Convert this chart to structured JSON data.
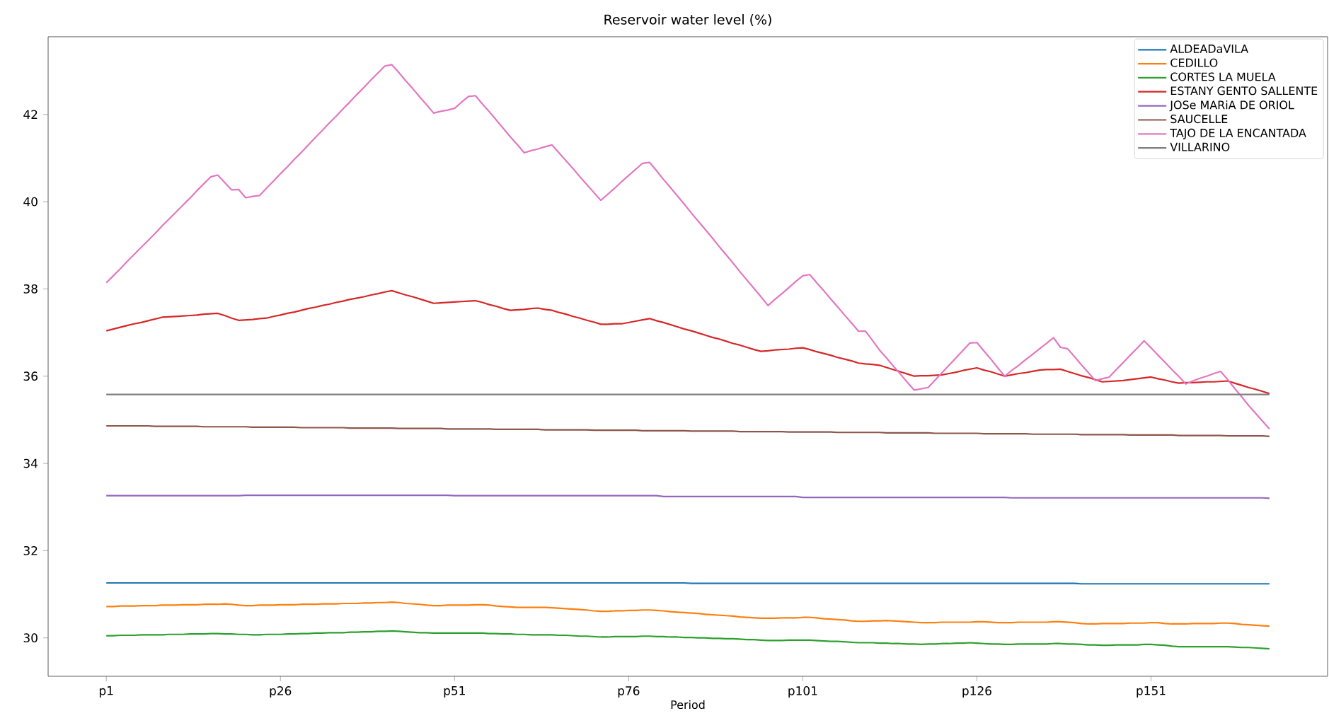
{
  "chart_data": {
    "type": "line",
    "title": "Reservoir water level (%)",
    "xlabel": "Period",
    "categories": [
      "p1",
      null,
      null,
      null,
      null,
      null,
      null,
      null,
      null,
      null,
      null,
      null,
      null,
      null,
      null,
      null,
      null,
      null,
      null,
      null,
      null,
      null,
      null,
      null,
      null,
      "p26",
      null,
      null,
      null,
      null,
      null,
      null,
      null,
      null,
      null,
      null,
      null,
      null,
      null,
      null,
      null,
      null,
      null,
      null,
      null,
      null,
      null,
      null,
      null,
      null,
      "p51",
      null,
      null,
      null,
      null,
      null,
      null,
      null,
      null,
      null,
      null,
      null,
      null,
      null,
      null,
      null,
      null,
      null,
      null,
      null,
      null,
      null,
      null,
      null,
      null,
      "p76",
      null,
      null,
      null,
      null,
      null,
      null,
      null,
      null,
      null,
      null,
      null,
      null,
      null,
      null,
      null,
      null,
      null,
      null,
      null,
      null,
      null,
      null,
      null,
      null,
      "p101",
      null,
      null,
      null,
      null,
      null,
      null,
      null,
      null,
      null,
      null,
      null,
      null,
      null,
      null,
      null,
      null,
      null,
      null,
      null,
      null,
      null,
      null,
      null,
      null,
      "p126",
      null,
      null,
      null,
      null,
      null,
      null,
      null,
      null,
      null,
      null,
      null,
      null,
      null,
      null,
      null,
      null,
      null,
      null,
      null,
      null,
      null,
      null,
      null,
      null,
      "p151",
      null,
      null,
      null,
      null,
      null,
      null,
      null,
      null,
      null,
      null,
      null,
      null,
      null,
      null,
      null,
      null,
      null
    ],
    "ylim": [
      29.12,
      43.78
    ],
    "yticks": [
      30,
      32,
      34,
      36,
      38,
      40,
      42
    ],
    "grid": false,
    "legend": "top right",
    "marker": "none",
    "line_style": "solid",
    "series": [
      {
        "name": "ALDEADaVILA",
        "color": "#1f77b4",
        "values": [
          31.26,
          31.26,
          31.26,
          31.26,
          31.26,
          31.26,
          31.26,
          31.26,
          31.26,
          31.26,
          31.26,
          31.26,
          31.26,
          31.26,
          31.26,
          31.26,
          31.26,
          31.26,
          31.26,
          31.26,
          31.26,
          31.26,
          31.26,
          31.26,
          31.26,
          31.26,
          31.26,
          31.26,
          31.26,
          31.26,
          31.26,
          31.26,
          31.26,
          31.26,
          31.26,
          31.26,
          31.26,
          31.26,
          31.26,
          31.26,
          31.26,
          31.26,
          31.26,
          31.26,
          31.26,
          31.26,
          31.26,
          31.26,
          31.26,
          31.26,
          31.26,
          31.26,
          31.26,
          31.26,
          31.26,
          31.26,
          31.26,
          31.26,
          31.26,
          31.26,
          31.26,
          31.26,
          31.26,
          31.26,
          31.26,
          31.26,
          31.26,
          31.26,
          31.26,
          31.26,
          31.26,
          31.26,
          31.26,
          31.26,
          31.26,
          31.26,
          31.26,
          31.26,
          31.26,
          31.26,
          31.26,
          31.26,
          31.26,
          31.26,
          31.25,
          31.25,
          31.25,
          31.25,
          31.25,
          31.25,
          31.25,
          31.25,
          31.25,
          31.25,
          31.25,
          31.25,
          31.25,
          31.25,
          31.25,
          31.25,
          31.25,
          31.25,
          31.25,
          31.25,
          31.25,
          31.25,
          31.25,
          31.25,
          31.25,
          31.25,
          31.25,
          31.25,
          31.25,
          31.25,
          31.25,
          31.25,
          31.25,
          31.25,
          31.25,
          31.25,
          31.25,
          31.25,
          31.25,
          31.25,
          31.25,
          31.25,
          31.25,
          31.25,
          31.25,
          31.25,
          31.25,
          31.25,
          31.25,
          31.25,
          31.25,
          31.25,
          31.25,
          31.25,
          31.25,
          31.25,
          31.24,
          31.24,
          31.24,
          31.24,
          31.24,
          31.24,
          31.24,
          31.24,
          31.24,
          31.24,
          31.24,
          31.24,
          31.24,
          31.24,
          31.24,
          31.24,
          31.24,
          31.24,
          31.24,
          31.24,
          31.24,
          31.24,
          31.24,
          31.24,
          31.24,
          31.24,
          31.24,
          31.24
        ]
      },
      {
        "name": "CEDILLO",
        "color": "#ff7f0e",
        "values": [
          30.72,
          30.72,
          30.73,
          30.73,
          30.73,
          30.74,
          30.74,
          30.74,
          30.75,
          30.75,
          30.75,
          30.76,
          30.76,
          30.76,
          30.77,
          30.77,
          30.77,
          30.78,
          30.77,
          30.75,
          30.74,
          30.74,
          30.75,
          30.75,
          30.75,
          30.76,
          30.76,
          30.76,
          30.77,
          30.77,
          30.77,
          30.78,
          30.78,
          30.78,
          30.79,
          30.79,
          30.79,
          30.8,
          30.8,
          30.81,
          30.81,
          30.82,
          30.81,
          30.79,
          30.78,
          30.77,
          30.75,
          30.74,
          30.74,
          30.75,
          30.75,
          30.75,
          30.75,
          30.76,
          30.76,
          30.75,
          30.73,
          30.72,
          30.71,
          30.7,
          30.7,
          30.7,
          30.7,
          30.7,
          30.69,
          30.68,
          30.67,
          30.66,
          30.65,
          30.64,
          30.62,
          30.61,
          30.61,
          30.62,
          30.62,
          30.63,
          30.63,
          30.64,
          30.64,
          30.63,
          30.62,
          30.6,
          30.59,
          30.58,
          30.57,
          30.56,
          30.54,
          30.53,
          30.52,
          30.51,
          30.5,
          30.48,
          30.47,
          30.46,
          30.45,
          30.45,
          30.45,
          30.46,
          30.46,
          30.46,
          30.47,
          30.47,
          30.46,
          30.44,
          30.43,
          30.42,
          30.41,
          30.39,
          30.38,
          30.38,
          30.39,
          30.39,
          30.4,
          30.39,
          30.38,
          30.37,
          30.36,
          30.35,
          30.35,
          30.35,
          30.36,
          30.36,
          30.36,
          30.36,
          30.36,
          30.37,
          30.37,
          30.36,
          30.35,
          30.35,
          30.35,
          30.36,
          30.36,
          30.36,
          30.36,
          30.36,
          30.37,
          30.37,
          30.36,
          30.35,
          30.33,
          30.32,
          30.32,
          30.33,
          30.33,
          30.33,
          30.33,
          30.34,
          30.34,
          30.34,
          30.35,
          30.35,
          30.33,
          30.32,
          30.32,
          30.32,
          30.33,
          30.33,
          30.33,
          30.33,
          30.34,
          30.34,
          30.33,
          30.31,
          30.3,
          30.29,
          30.28,
          30.27
        ]
      },
      {
        "name": "CORTES LA MUELA",
        "color": "#2ca02c",
        "values": [
          30.05,
          30.05,
          30.06,
          30.06,
          30.06,
          30.07,
          30.07,
          30.07,
          30.07,
          30.08,
          30.08,
          30.08,
          30.09,
          30.09,
          30.09,
          30.1,
          30.1,
          30.09,
          30.09,
          30.08,
          30.08,
          30.07,
          30.07,
          30.08,
          30.08,
          30.08,
          30.09,
          30.09,
          30.1,
          30.1,
          30.11,
          30.11,
          30.12,
          30.12,
          30.12,
          30.13,
          30.13,
          30.14,
          30.14,
          30.15,
          30.15,
          30.16,
          30.15,
          30.14,
          30.13,
          30.12,
          30.12,
          30.11,
          30.11,
          30.11,
          30.11,
          30.11,
          30.11,
          30.11,
          30.11,
          30.1,
          30.1,
          30.09,
          30.09,
          30.08,
          30.08,
          30.07,
          30.07,
          30.07,
          30.07,
          30.06,
          30.06,
          30.05,
          30.04,
          30.04,
          30.03,
          30.02,
          30.02,
          30.03,
          30.03,
          30.03,
          30.03,
          30.04,
          30.04,
          30.03,
          30.03,
          30.02,
          30.02,
          30.01,
          30.01,
          30.0,
          30.0,
          29.99,
          29.99,
          29.98,
          29.98,
          29.97,
          29.96,
          29.96,
          29.95,
          29.94,
          29.94,
          29.94,
          29.95,
          29.95,
          29.95,
          29.95,
          29.94,
          29.93,
          29.92,
          29.92,
          29.91,
          29.9,
          29.89,
          29.89,
          29.89,
          29.88,
          29.88,
          29.87,
          29.87,
          29.86,
          29.86,
          29.85,
          29.86,
          29.86,
          29.87,
          29.87,
          29.88,
          29.88,
          29.89,
          29.88,
          29.87,
          29.86,
          29.86,
          29.85,
          29.85,
          29.86,
          29.86,
          29.86,
          29.86,
          29.86,
          29.87,
          29.87,
          29.86,
          29.86,
          29.85,
          29.84,
          29.84,
          29.83,
          29.83,
          29.84,
          29.84,
          29.84,
          29.84,
          29.85,
          29.85,
          29.84,
          29.83,
          29.81,
          29.8,
          29.8,
          29.8,
          29.8,
          29.8,
          29.8,
          29.8,
          29.8,
          29.79,
          29.78,
          29.78,
          29.77,
          29.76,
          29.75
        ]
      },
      {
        "name": "ESTANY GENTO SALLENTE",
        "color": "#d62728",
        "values": [
          37.04,
          37.08,
          37.12,
          37.16,
          37.2,
          37.23,
          37.27,
          37.31,
          37.35,
          37.36,
          37.37,
          37.38,
          37.39,
          37.4,
          37.42,
          37.43,
          37.44,
          37.39,
          37.33,
          37.28,
          37.29,
          37.3,
          37.32,
          37.33,
          37.37,
          37.4,
          37.44,
          37.47,
          37.51,
          37.55,
          37.58,
          37.62,
          37.65,
          37.69,
          37.72,
          37.76,
          37.79,
          37.82,
          37.86,
          37.89,
          37.93,
          37.96,
          37.91,
          37.86,
          37.82,
          37.77,
          37.72,
          37.67,
          37.68,
          37.69,
          37.7,
          37.71,
          37.72,
          37.73,
          37.69,
          37.64,
          37.6,
          37.55,
          37.51,
          37.52,
          37.53,
          37.55,
          37.56,
          37.53,
          37.51,
          37.46,
          37.42,
          37.37,
          37.33,
          37.28,
          37.24,
          37.19,
          37.19,
          37.2,
          37.2,
          37.23,
          37.26,
          37.29,
          37.32,
          37.27,
          37.23,
          37.18,
          37.13,
          37.08,
          37.04,
          36.99,
          36.94,
          36.89,
          36.85,
          36.8,
          36.75,
          36.71,
          36.66,
          36.61,
          36.57,
          36.58,
          36.6,
          36.61,
          36.62,
          36.64,
          36.65,
          36.61,
          36.56,
          36.52,
          36.48,
          36.43,
          36.39,
          36.35,
          36.3,
          36.28,
          36.27,
          36.25,
          36.2,
          36.15,
          36.1,
          36.05,
          36.0,
          36.01,
          36.01,
          36.02,
          36.03,
          36.06,
          36.09,
          36.13,
          36.16,
          36.19,
          36.14,
          36.1,
          36.05,
          36.0,
          36.03,
          36.06,
          36.08,
          36.11,
          36.14,
          36.15,
          36.15,
          36.16,
          36.11,
          36.06,
          36.01,
          35.97,
          35.92,
          35.87,
          35.88,
          35.89,
          35.9,
          35.92,
          35.94,
          35.96,
          35.98,
          35.94,
          35.91,
          35.87,
          35.84,
          35.85,
          35.85,
          35.86,
          35.87,
          35.87,
          35.88,
          35.89,
          35.84,
          35.79,
          35.74,
          35.7,
          35.65,
          35.6
        ]
      },
      {
        "name": "JOSe MARiA DE ORIOL",
        "color": "#9467bd",
        "values": [
          33.26,
          33.26,
          33.26,
          33.26,
          33.26,
          33.26,
          33.26,
          33.26,
          33.26,
          33.26,
          33.26,
          33.26,
          33.26,
          33.26,
          33.26,
          33.26,
          33.26,
          33.26,
          33.26,
          33.26,
          33.27,
          33.27,
          33.27,
          33.27,
          33.27,
          33.27,
          33.27,
          33.27,
          33.27,
          33.27,
          33.27,
          33.27,
          33.27,
          33.27,
          33.27,
          33.27,
          33.27,
          33.27,
          33.27,
          33.27,
          33.27,
          33.27,
          33.27,
          33.27,
          33.27,
          33.27,
          33.27,
          33.27,
          33.27,
          33.27,
          33.26,
          33.26,
          33.26,
          33.26,
          33.26,
          33.26,
          33.26,
          33.26,
          33.26,
          33.26,
          33.26,
          33.26,
          33.26,
          33.26,
          33.26,
          33.26,
          33.26,
          33.26,
          33.26,
          33.26,
          33.26,
          33.26,
          33.26,
          33.26,
          33.26,
          33.26,
          33.26,
          33.26,
          33.26,
          33.26,
          33.24,
          33.24,
          33.24,
          33.24,
          33.24,
          33.24,
          33.24,
          33.24,
          33.24,
          33.24,
          33.24,
          33.24,
          33.24,
          33.24,
          33.24,
          33.24,
          33.24,
          33.24,
          33.24,
          33.24,
          33.22,
          33.22,
          33.22,
          33.22,
          33.22,
          33.22,
          33.22,
          33.22,
          33.22,
          33.22,
          33.22,
          33.22,
          33.22,
          33.22,
          33.22,
          33.22,
          33.22,
          33.22,
          33.22,
          33.22,
          33.22,
          33.22,
          33.22,
          33.22,
          33.22,
          33.22,
          33.22,
          33.22,
          33.22,
          33.22,
          33.21,
          33.21,
          33.21,
          33.21,
          33.21,
          33.21,
          33.21,
          33.21,
          33.21,
          33.21,
          33.21,
          33.21,
          33.21,
          33.21,
          33.21,
          33.21,
          33.21,
          33.21,
          33.21,
          33.21,
          33.21,
          33.21,
          33.21,
          33.21,
          33.21,
          33.21,
          33.21,
          33.21,
          33.21,
          33.21,
          33.21,
          33.21,
          33.21,
          33.21,
          33.21,
          33.21,
          33.21,
          33.2
        ]
      },
      {
        "name": "SAUCELLE",
        "color": "#8c564b",
        "values": [
          34.86,
          34.86,
          34.86,
          34.86,
          34.86,
          34.86,
          34.86,
          34.85,
          34.85,
          34.85,
          34.85,
          34.85,
          34.85,
          34.85,
          34.84,
          34.84,
          34.84,
          34.84,
          34.84,
          34.84,
          34.84,
          34.83,
          34.83,
          34.83,
          34.83,
          34.83,
          34.83,
          34.83,
          34.82,
          34.82,
          34.82,
          34.82,
          34.82,
          34.82,
          34.82,
          34.81,
          34.81,
          34.81,
          34.81,
          34.81,
          34.81,
          34.81,
          34.8,
          34.8,
          34.8,
          34.8,
          34.8,
          34.8,
          34.8,
          34.79,
          34.79,
          34.79,
          34.79,
          34.79,
          34.79,
          34.79,
          34.78,
          34.78,
          34.78,
          34.78,
          34.78,
          34.78,
          34.78,
          34.77,
          34.77,
          34.77,
          34.77,
          34.77,
          34.77,
          34.77,
          34.76,
          34.76,
          34.76,
          34.76,
          34.76,
          34.76,
          34.76,
          34.75,
          34.75,
          34.75,
          34.75,
          34.75,
          34.75,
          34.75,
          34.74,
          34.74,
          34.74,
          34.74,
          34.74,
          34.74,
          34.74,
          34.73,
          34.73,
          34.73,
          34.73,
          34.73,
          34.73,
          34.73,
          34.72,
          34.72,
          34.72,
          34.72,
          34.72,
          34.72,
          34.72,
          34.71,
          34.71,
          34.71,
          34.71,
          34.71,
          34.71,
          34.71,
          34.7,
          34.7,
          34.7,
          34.7,
          34.7,
          34.7,
          34.7,
          34.69,
          34.69,
          34.69,
          34.69,
          34.69,
          34.69,
          34.69,
          34.68,
          34.68,
          34.68,
          34.68,
          34.68,
          34.68,
          34.68,
          34.67,
          34.67,
          34.67,
          34.67,
          34.67,
          34.67,
          34.67,
          34.66,
          34.66,
          34.66,
          34.66,
          34.66,
          34.66,
          34.66,
          34.65,
          34.65,
          34.65,
          34.65,
          34.65,
          34.65,
          34.65,
          34.64,
          34.64,
          34.64,
          34.64,
          34.64,
          34.64,
          34.64,
          34.63,
          34.63,
          34.63,
          34.63,
          34.63,
          34.63,
          34.62
        ]
      },
      {
        "name": "TAJO DE LA ENCANTADA",
        "color": "#e377c2",
        "values": [
          38.14,
          38.3,
          38.46,
          38.63,
          38.79,
          38.95,
          39.11,
          39.27,
          39.44,
          39.6,
          39.76,
          39.92,
          40.08,
          40.25,
          40.41,
          40.57,
          40.61,
          40.44,
          40.27,
          40.28,
          40.09,
          40.12,
          40.14,
          40.31,
          40.47,
          40.64,
          40.8,
          40.97,
          41.13,
          41.3,
          41.47,
          41.63,
          41.8,
          41.96,
          42.13,
          42.29,
          42.46,
          42.62,
          42.79,
          42.95,
          43.11,
          43.14,
          42.96,
          42.77,
          42.59,
          42.4,
          42.22,
          42.03,
          42.07,
          42.1,
          42.14,
          42.28,
          42.41,
          42.43,
          42.24,
          42.06,
          41.87,
          41.68,
          41.49,
          41.31,
          41.12,
          41.17,
          41.21,
          41.26,
          41.3,
          41.12,
          40.94,
          40.76,
          40.57,
          40.39,
          40.21,
          40.03,
          40.17,
          40.31,
          40.46,
          40.6,
          40.74,
          40.88,
          40.9,
          40.71,
          40.51,
          40.32,
          40.13,
          39.94,
          39.74,
          39.55,
          39.36,
          39.17,
          38.97,
          38.78,
          38.59,
          38.39,
          38.2,
          38.01,
          37.82,
          37.62,
          37.76,
          37.89,
          38.03,
          38.17,
          38.3,
          38.33,
          38.14,
          37.96,
          37.77,
          37.59,
          37.4,
          37.22,
          37.03,
          37.03,
          36.82,
          36.6,
          36.42,
          36.23,
          36.05,
          35.86,
          35.68,
          35.71,
          35.74,
          35.91,
          36.08,
          36.25,
          36.42,
          36.59,
          36.76,
          36.77,
          36.58,
          36.39,
          36.19,
          36.0,
          36.13,
          36.25,
          36.38,
          36.5,
          36.63,
          36.75,
          36.88,
          36.66,
          36.63,
          36.45,
          36.26,
          36.08,
          35.9,
          35.94,
          35.98,
          36.15,
          36.31,
          36.48,
          36.64,
          36.81,
          36.65,
          36.48,
          36.32,
          36.15,
          35.99,
          35.82,
          35.89,
          35.95,
          36.0,
          36.06,
          36.11,
          35.92,
          35.72,
          35.53,
          35.33,
          35.15,
          34.97,
          34.79
        ]
      },
      {
        "name": "VILLARINO",
        "color": "#7f7f7f",
        "values": [
          35.58,
          35.58,
          35.58,
          35.58,
          35.58,
          35.58,
          35.58,
          35.58,
          35.58,
          35.58,
          35.58,
          35.58,
          35.58,
          35.58,
          35.58,
          35.58,
          35.58,
          35.58,
          35.58,
          35.58,
          35.58,
          35.58,
          35.58,
          35.58,
          35.58,
          35.58,
          35.58,
          35.58,
          35.58,
          35.58,
          35.58,
          35.58,
          35.58,
          35.58,
          35.58,
          35.58,
          35.58,
          35.58,
          35.58,
          35.58,
          35.58,
          35.58,
          35.58,
          35.58,
          35.58,
          35.58,
          35.58,
          35.58,
          35.58,
          35.58,
          35.58,
          35.58,
          35.58,
          35.58,
          35.58,
          35.58,
          35.58,
          35.58,
          35.58,
          35.58,
          35.58,
          35.58,
          35.58,
          35.58,
          35.58,
          35.58,
          35.58,
          35.58,
          35.58,
          35.58,
          35.58,
          35.58,
          35.58,
          35.58,
          35.58,
          35.58,
          35.58,
          35.58,
          35.58,
          35.58,
          35.58,
          35.58,
          35.58,
          35.58,
          35.58,
          35.58,
          35.58,
          35.58,
          35.58,
          35.58,
          35.58,
          35.58,
          35.58,
          35.58,
          35.58,
          35.58,
          35.58,
          35.58,
          35.58,
          35.58,
          35.58,
          35.58,
          35.58,
          35.58,
          35.58,
          35.58,
          35.58,
          35.58,
          35.58,
          35.58,
          35.58,
          35.58,
          35.58,
          35.58,
          35.58,
          35.58,
          35.58,
          35.58,
          35.58,
          35.58,
          35.58,
          35.58,
          35.58,
          35.58,
          35.58,
          35.58,
          35.58,
          35.58,
          35.58,
          35.58,
          35.58,
          35.58,
          35.58,
          35.58,
          35.58,
          35.58,
          35.58,
          35.58,
          35.58,
          35.58,
          35.58,
          35.58,
          35.58,
          35.58,
          35.58,
          35.58,
          35.58,
          35.58,
          35.58,
          35.58,
          35.58,
          35.58,
          35.58,
          35.58,
          35.58,
          35.58,
          35.58,
          35.58,
          35.58,
          35.58,
          35.58,
          35.58,
          35.58,
          35.58,
          35.58,
          35.58,
          35.58,
          35.58
        ]
      }
    ]
  }
}
